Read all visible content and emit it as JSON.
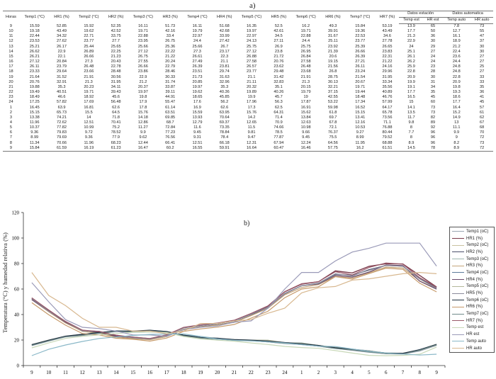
{
  "table": {
    "label": "a)",
    "group_headers": {
      "station": "Datos estación",
      "auto": "Datos automatica"
    },
    "columns": [
      "Horas",
      "Temp1 (°C)",
      "HR1 (%)",
      "Temp2 (°C)",
      "HR2 (%)",
      "Temp3 (°C)",
      "HR3 (%)",
      "Temp4 (°C)",
      "HR4 (%)",
      "Temp5 (°C)",
      "HR5 (%)",
      "Temp6 (°C)",
      "HR6 (%)",
      "Temp7 (°C)",
      "HR7 (%)",
      "Temp est",
      "HR est",
      "Temp auto",
      "HR auto"
    ],
    "rows": [
      [
        "9",
        "15.59",
        "52.85",
        "15.92",
        "52.35",
        "16.11",
        "51.73",
        "16.11",
        "51.68",
        "16.35",
        "52.5",
        "16.2",
        "49.3",
        "15.84",
        "53.19",
        "13.9",
        "65",
        "7.8",
        "73"
      ],
      [
        "10",
        "19.18",
        "43.49",
        "19.62",
        "42.52",
        "19.71",
        "42.16",
        "19.79",
        "42.68",
        "19.97",
        "42.61",
        "19.71",
        "39.91",
        "19.36",
        "43.49",
        "17.7",
        "50",
        "12.7",
        "55"
      ],
      [
        "11",
        "22.44",
        "34.32",
        "22.71",
        "33.75",
        "22.88",
        "33.4",
        "22.97",
        "33.99",
        "22.97",
        "34.5",
        "22.88",
        "31.67",
        "22.53",
        "34.6",
        "21.3",
        "36",
        "16.1",
        "47"
      ],
      [
        "12",
        "23.53",
        "27.62",
        "23.77",
        "27.7",
        "23.95",
        "26.75",
        "24.4",
        "27.42",
        "24.13",
        "27.11",
        "24.4",
        "25.11",
        "23.77",
        "27.78",
        "22.9",
        "30",
        "18.9",
        "37"
      ],
      [
        "13",
        "25.21",
        "26.17",
        "25.44",
        "25.65",
        "25.66",
        "25.36",
        "25.66",
        "26.7",
        "25.75",
        "26.9",
        "25.75",
        "23.92",
        "25.39",
        "26.65",
        "24",
        "29",
        "21.2",
        "30"
      ],
      [
        "14",
        "26.62",
        "22.9",
        "26.89",
        "22.25",
        "27.12",
        "22.22",
        "27.3",
        "23.17",
        "27.12",
        "23.8",
        "26.95",
        "21.39",
        "26.66",
        "23.83",
        "25.1",
        "27",
        "22.4",
        "30"
      ],
      [
        "15",
        "26.21",
        "22.1",
        "26.66",
        "21.23",
        "26.75",
        "21.22",
        "26.61",
        "22.3",
        "26.88",
        "21.72",
        "26.84",
        "20.6",
        "26.39",
        "22.31",
        "26.1",
        "24",
        "23.6",
        "27"
      ],
      [
        "16",
        "27.12",
        "20.84",
        "27.3",
        "20.43",
        "27.55",
        "20.24",
        "27.49",
        "21.1",
        "27.58",
        "20.76",
        "27.58",
        "19.15",
        "27.21",
        "21.22",
        "26.2",
        "24",
        "24.4",
        "27"
      ],
      [
        "17",
        "26.11",
        "23.79",
        "26.48",
        "22.78",
        "26.66",
        "22.79",
        "26.39",
        "23.81",
        "26.57",
        "23.62",
        "26.48",
        "21.56",
        "26.11",
        "24.16",
        "25.9",
        "23",
        "24.8",
        "25"
      ],
      [
        "18",
        "23.33",
        "29.64",
        "23.66",
        "28.48",
        "23.86",
        "28.46",
        "23.51",
        "29.74",
        "23.77",
        "29.48",
        "23.68",
        "26.8",
        "23.24",
        "29.96",
        "22.8",
        "28",
        "24.8",
        "27"
      ],
      [
        "19",
        "21.64",
        "31.52",
        "21.91",
        "30.56",
        "22.9",
        "30.33",
        "21.73",
        "31.63",
        "21.1",
        "31.42",
        "21.91",
        "28.75",
        "21.54",
        "31.95",
        "20.9",
        "30",
        "22.8",
        "33"
      ],
      [
        "20",
        "20.76",
        "32.91",
        "21.3",
        "31.95",
        "21.2",
        "31.74",
        "20.85",
        "32.96",
        "21.11",
        "32.83",
        "21.3",
        "30.13",
        "20.67",
        "33.34",
        "19.9",
        "31",
        "20.9",
        "33"
      ],
      [
        "21",
        "19.88",
        "35.3",
        "20.23",
        "34.11",
        "20.37",
        "33.87",
        "19.97",
        "35.3",
        "20.32",
        "35.1",
        "20.15",
        "32.21",
        "19.71",
        "35.56",
        "19.1",
        "34",
        "19.8",
        "35"
      ],
      [
        "22",
        "19.49",
        "40.51",
        "19.71",
        "39.43",
        "19.97",
        "39.11",
        "19.62",
        "40.36",
        "19.89",
        "40.26",
        "19.79",
        "37.15",
        "19.44",
        "40.89",
        "17.7",
        "35",
        "19.3",
        "36"
      ],
      [
        "23",
        "18.49",
        "46.6",
        "18.92",
        "45.6",
        "19.8",
        "44.91",
        "18.65",
        "45.85",
        "19.9",
        "45.7",
        "19",
        "42.55",
        "18.48",
        "46.76",
        "16.5",
        "45",
        "18.6",
        "41"
      ],
      [
        "24",
        "17.25",
        "57.82",
        "17.69",
        "56.48",
        "17.9",
        "55.47",
        "17.6",
        "56.2",
        "17.96",
        "56.3",
        "17.87",
        "53.22",
        "17.34",
        "57.99",
        "15",
        "60",
        "17.7",
        "45"
      ],
      [
        "1",
        "16.45",
        "63.9",
        "16.81",
        "62.6",
        "17.8",
        "61.14",
        "16.9",
        "62.6",
        "17.3",
        "62.5",
        "16.91",
        "59.98",
        "16.52",
        "64.17",
        "14.1",
        "73",
        "16.4",
        "57"
      ],
      [
        "2",
        "15.15",
        "65.73",
        "15.5",
        "64.5",
        "15.76",
        "63.51",
        "15.59",
        "63.95",
        "15.76",
        "64.31",
        "15.62",
        "61.8",
        "15.15",
        "65.78",
        "13.5",
        "73",
        "15.2",
        "61"
      ],
      [
        "3",
        "13.38",
        "74.21",
        "14",
        "71.8",
        "14.18",
        "69.85",
        "13.93",
        "70.64",
        "14.2",
        "71.4",
        "13.84",
        "69.7",
        "13.41",
        "73.56",
        "11.7",
        "82",
        "14.9",
        "62"
      ],
      [
        "4",
        "11.96",
        "72.62",
        "12.51",
        "70.41",
        "12.86",
        "68.7",
        "12.79",
        "69.37",
        "12.65",
        "70.9",
        "12.63",
        "67.8",
        "12.16",
        "71.1",
        "9.8",
        "89",
        "13",
        "67"
      ],
      [
        "5",
        "10.37",
        "77.82",
        "10.99",
        "75.2",
        "11.27",
        "72.84",
        "11.6",
        "73.35",
        "11.5",
        "74.66",
        "10.98",
        "72.1",
        "10.53",
        "76.88",
        "8",
        "92",
        "11.1",
        "68"
      ],
      [
        "6",
        "9.36",
        "79.83",
        "9.72",
        "78.52",
        "9.9",
        "77.23",
        "9.45",
        "78.84",
        "9.81",
        "78.5",
        "9.66",
        "76.37",
        "9.27",
        "80.44",
        "7.7",
        "96",
        "9.9",
        "70"
      ],
      [
        "7",
        "8.99",
        "79.69",
        "9.36",
        "77.9",
        "9.62",
        "76.56",
        "9.31",
        "78.4",
        "9.47",
        "77.87",
        "9.45",
        "75.5",
        "8.99",
        "79.52",
        "8",
        "96",
        "9",
        "72"
      ],
      [
        "8",
        "11.34",
        "70.66",
        "11.96",
        "68.23",
        "12.44",
        "66.41",
        "12.51",
        "66.18",
        "12.31",
        "67.94",
        "12.24",
        "64.56",
        "11.95",
        "68.88",
        "8.9",
        "96",
        "8.2",
        "73"
      ],
      [
        "9",
        "15.84",
        "61.59",
        "16.19",
        "61.23",
        "16.47",
        "60.2",
        "16.55",
        "59.91",
        "16.64",
        "60.47",
        "16.46",
        "57.75",
        "16.2",
        "61.51",
        "14.5",
        "78",
        "8.9",
        "72"
      ]
    ]
  },
  "chart_data": {
    "type": "line",
    "label": "b)",
    "title": "",
    "xlabel": "",
    "ylabel": "Temperatura (°C) y humedad relativa (%)",
    "ylim": [
      0,
      120
    ],
    "yticks": [
      "0",
      "20",
      "40",
      "60",
      "80",
      "100",
      "120"
    ],
    "grid": false,
    "legend_position": "right",
    "categories": [
      "9",
      "10",
      "11",
      "12",
      "13",
      "14",
      "15",
      "16",
      "17",
      "18",
      "19",
      "20",
      "21",
      "22",
      "23",
      "24",
      "1",
      "2",
      "3",
      "4",
      "5",
      "6",
      "7",
      "8",
      "9"
    ],
    "series": [
      {
        "name": "Temp1 (oC)",
        "color": "#9aa6b3",
        "width": 1.2,
        "values": [
          15.59,
          19.18,
          22.44,
          23.53,
          25.21,
          26.62,
          26.21,
          27.12,
          26.11,
          23.33,
          21.64,
          20.76,
          19.88,
          19.49,
          18.49,
          17.25,
          16.45,
          15.15,
          13.38,
          11.96,
          10.37,
          9.36,
          8.99,
          11.34,
          15.84
        ]
      },
      {
        "name": "HR1 (%)",
        "color": "#7a3a4a",
        "width": 1.4,
        "values": [
          52.85,
          43.49,
          34.32,
          27.62,
          26.17,
          22.9,
          22.1,
          20.84,
          23.79,
          29.64,
          31.52,
          32.91,
          35.3,
          40.51,
          46.6,
          57.82,
          63.9,
          65.73,
          74.21,
          72.62,
          77.82,
          79.83,
          79.69,
          70.66,
          61.59
        ]
      },
      {
        "name": "Temp2 (oC)",
        "color": "#c9c2a0",
        "width": 1.2,
        "values": [
          15.92,
          19.62,
          22.71,
          23.77,
          25.44,
          26.89,
          26.66,
          27.3,
          26.48,
          23.66,
          21.91,
          21.3,
          20.23,
          19.71,
          18.92,
          17.69,
          16.81,
          15.5,
          14,
          12.51,
          10.99,
          9.72,
          9.36,
          11.96,
          16.19
        ]
      },
      {
        "name": "HR2 (%)",
        "color": "#4b4f6a",
        "width": 1.2,
        "values": [
          52.35,
          42.52,
          33.75,
          27.7,
          25.65,
          22.25,
          21.23,
          20.43,
          22.78,
          28.48,
          30.56,
          31.95,
          34.11,
          39.43,
          45.6,
          56.48,
          62.6,
          64.5,
          71.8,
          70.41,
          75.2,
          78.52,
          77.9,
          68.23,
          61.23
        ]
      },
      {
        "name": "Temp3 (oC)",
        "color": "#9fb7b0",
        "width": 1.2,
        "values": [
          16.11,
          19.71,
          22.88,
          23.95,
          25.66,
          27.12,
          26.75,
          27.55,
          26.66,
          23.86,
          22.9,
          21.2,
          20.37,
          19.97,
          19.8,
          17.9,
          17.8,
          15.76,
          14.18,
          12.86,
          11.27,
          9.9,
          9.62,
          12.44,
          16.47
        ]
      },
      {
        "name": "HR3 (%)",
        "color": "#c4a57a",
        "width": 1.2,
        "values": [
          51.73,
          42.16,
          33.4,
          26.75,
          25.36,
          22.22,
          21.22,
          20.24,
          22.79,
          28.46,
          30.33,
          31.74,
          33.87,
          39.11,
          44.91,
          55.47,
          61.14,
          63.51,
          69.85,
          68.7,
          72.84,
          77.23,
          76.56,
          66.41,
          60.2
        ]
      },
      {
        "name": "Temp4 (oC)",
        "color": "#5b7a9a",
        "width": 1.2,
        "values": [
          16.11,
          19.79,
          22.97,
          24.4,
          25.66,
          27.3,
          26.61,
          27.49,
          26.39,
          23.51,
          21.73,
          20.85,
          19.97,
          19.62,
          18.65,
          17.6,
          16.9,
          15.59,
          13.93,
          12.79,
          11.6,
          9.45,
          9.31,
          12.51,
          16.55
        ]
      },
      {
        "name": "HR4 (%)",
        "color": "#6a4a6a",
        "width": 1.2,
        "values": [
          51.68,
          42.68,
          33.99,
          27.42,
          26.7,
          23.17,
          22.3,
          21.1,
          23.81,
          29.74,
          31.63,
          32.96,
          35.3,
          40.36,
          45.85,
          56.2,
          62.6,
          63.95,
          70.64,
          69.37,
          73.35,
          78.84,
          78.4,
          66.18,
          59.91
        ]
      },
      {
        "name": "Temp5 (oC)",
        "color": "#b3b89a",
        "width": 1.2,
        "values": [
          16.35,
          19.97,
          22.97,
          24.13,
          25.75,
          27.12,
          26.88,
          27.58,
          26.57,
          23.77,
          21.1,
          21.11,
          20.32,
          19.89,
          19.9,
          17.96,
          17.3,
          15.76,
          14.2,
          12.65,
          11.5,
          9.81,
          9.47,
          12.31,
          16.64
        ]
      },
      {
        "name": "HR5 (%)",
        "color": "#8a8a9a",
        "width": 1.2,
        "values": [
          52.5,
          42.61,
          34.5,
          27.11,
          26.9,
          23.8,
          21.72,
          20.76,
          23.62,
          29.48,
          31.42,
          32.83,
          35.1,
          40.26,
          45.7,
          56.3,
          62.5,
          64.31,
          71.4,
          70.9,
          74.66,
          78.5,
          77.87,
          67.94,
          60.47
        ]
      },
      {
        "name": "Temp6 (oC)",
        "color": "#1f2f3f",
        "width": 1.8,
        "values": [
          16.2,
          19.71,
          22.88,
          24.4,
          25.75,
          26.95,
          26.84,
          27.58,
          26.48,
          23.68,
          21.91,
          21.3,
          20.15,
          19.79,
          19,
          17.87,
          16.91,
          15.62,
          13.84,
          12.63,
          10.98,
          9.66,
          9.45,
          12.24,
          16.46
        ]
      },
      {
        "name": "HR6 (%)",
        "color": "#c69a6a",
        "width": 1.2,
        "values": [
          49.3,
          39.91,
          31.67,
          25.11,
          23.92,
          21.39,
          20.6,
          19.15,
          21.56,
          26.8,
          28.75,
          30.13,
          32.21,
          37.15,
          42.55,
          53.22,
          59.98,
          61.8,
          69.7,
          67.8,
          72.1,
          76.37,
          75.5,
          64.56,
          57.75
        ]
      },
      {
        "name": "Temp7 (oC)",
        "color": "#6f8a8a",
        "width": 1.2,
        "values": [
          15.84,
          19.36,
          22.53,
          23.77,
          25.39,
          26.66,
          26.39,
          27.21,
          26.11,
          23.24,
          21.54,
          20.67,
          19.71,
          19.44,
          18.48,
          17.34,
          16.52,
          15.15,
          13.41,
          12.16,
          10.53,
          9.27,
          8.99,
          11.95,
          16.2
        ]
      },
      {
        "name": "HR7 (%)",
        "color": "#9a5a6a",
        "width": 1.2,
        "values": [
          53.19,
          43.49,
          34.6,
          27.78,
          26.65,
          23.83,
          22.31,
          21.22,
          24.16,
          29.96,
          31.95,
          33.34,
          35.56,
          40.89,
          46.76,
          57.99,
          64.17,
          65.78,
          73.56,
          71.1,
          76.88,
          80.44,
          79.52,
          68.88,
          61.51
        ]
      },
      {
        "name": "Temp est",
        "color": "#c8d8b8",
        "width": 1.2,
        "values": [
          13.9,
          17.7,
          21.3,
          22.9,
          24,
          25.1,
          26.1,
          26.2,
          25.9,
          22.8,
          20.9,
          19.9,
          19.1,
          17.7,
          16.5,
          15,
          14.1,
          13.5,
          11.7,
          9.8,
          8,
          7.7,
          8,
          8.9,
          14.5
        ]
      },
      {
        "name": "HR est",
        "color": "#9a9ab8",
        "width": 1.2,
        "values": [
          65,
          50,
          36,
          30,
          29,
          27,
          24,
          24,
          23,
          28,
          30,
          31,
          34,
          35,
          45,
          60,
          73,
          73,
          82,
          89,
          92,
          96,
          96,
          96,
          78
        ]
      },
      {
        "name": "Temp auto",
        "color": "#8ab8c8",
        "width": 1.2,
        "values": [
          7.8,
          12.7,
          16.1,
          18.9,
          21.2,
          22.4,
          23.6,
          24.4,
          24.8,
          24.8,
          22.8,
          20.9,
          19.8,
          19.3,
          18.6,
          17.7,
          16.4,
          15.2,
          14.9,
          13,
          11.1,
          9.9,
          9,
          8.2,
          8.9
        ]
      },
      {
        "name": "HR auto",
        "color": "#d8b890",
        "width": 1.2,
        "values": [
          73,
          55,
          47,
          37,
          30,
          30,
          27,
          27,
          25,
          27,
          33,
          33,
          35,
          36,
          41,
          45,
          57,
          61,
          62,
          67,
          68,
          70,
          72,
          73,
          72
        ]
      }
    ]
  }
}
